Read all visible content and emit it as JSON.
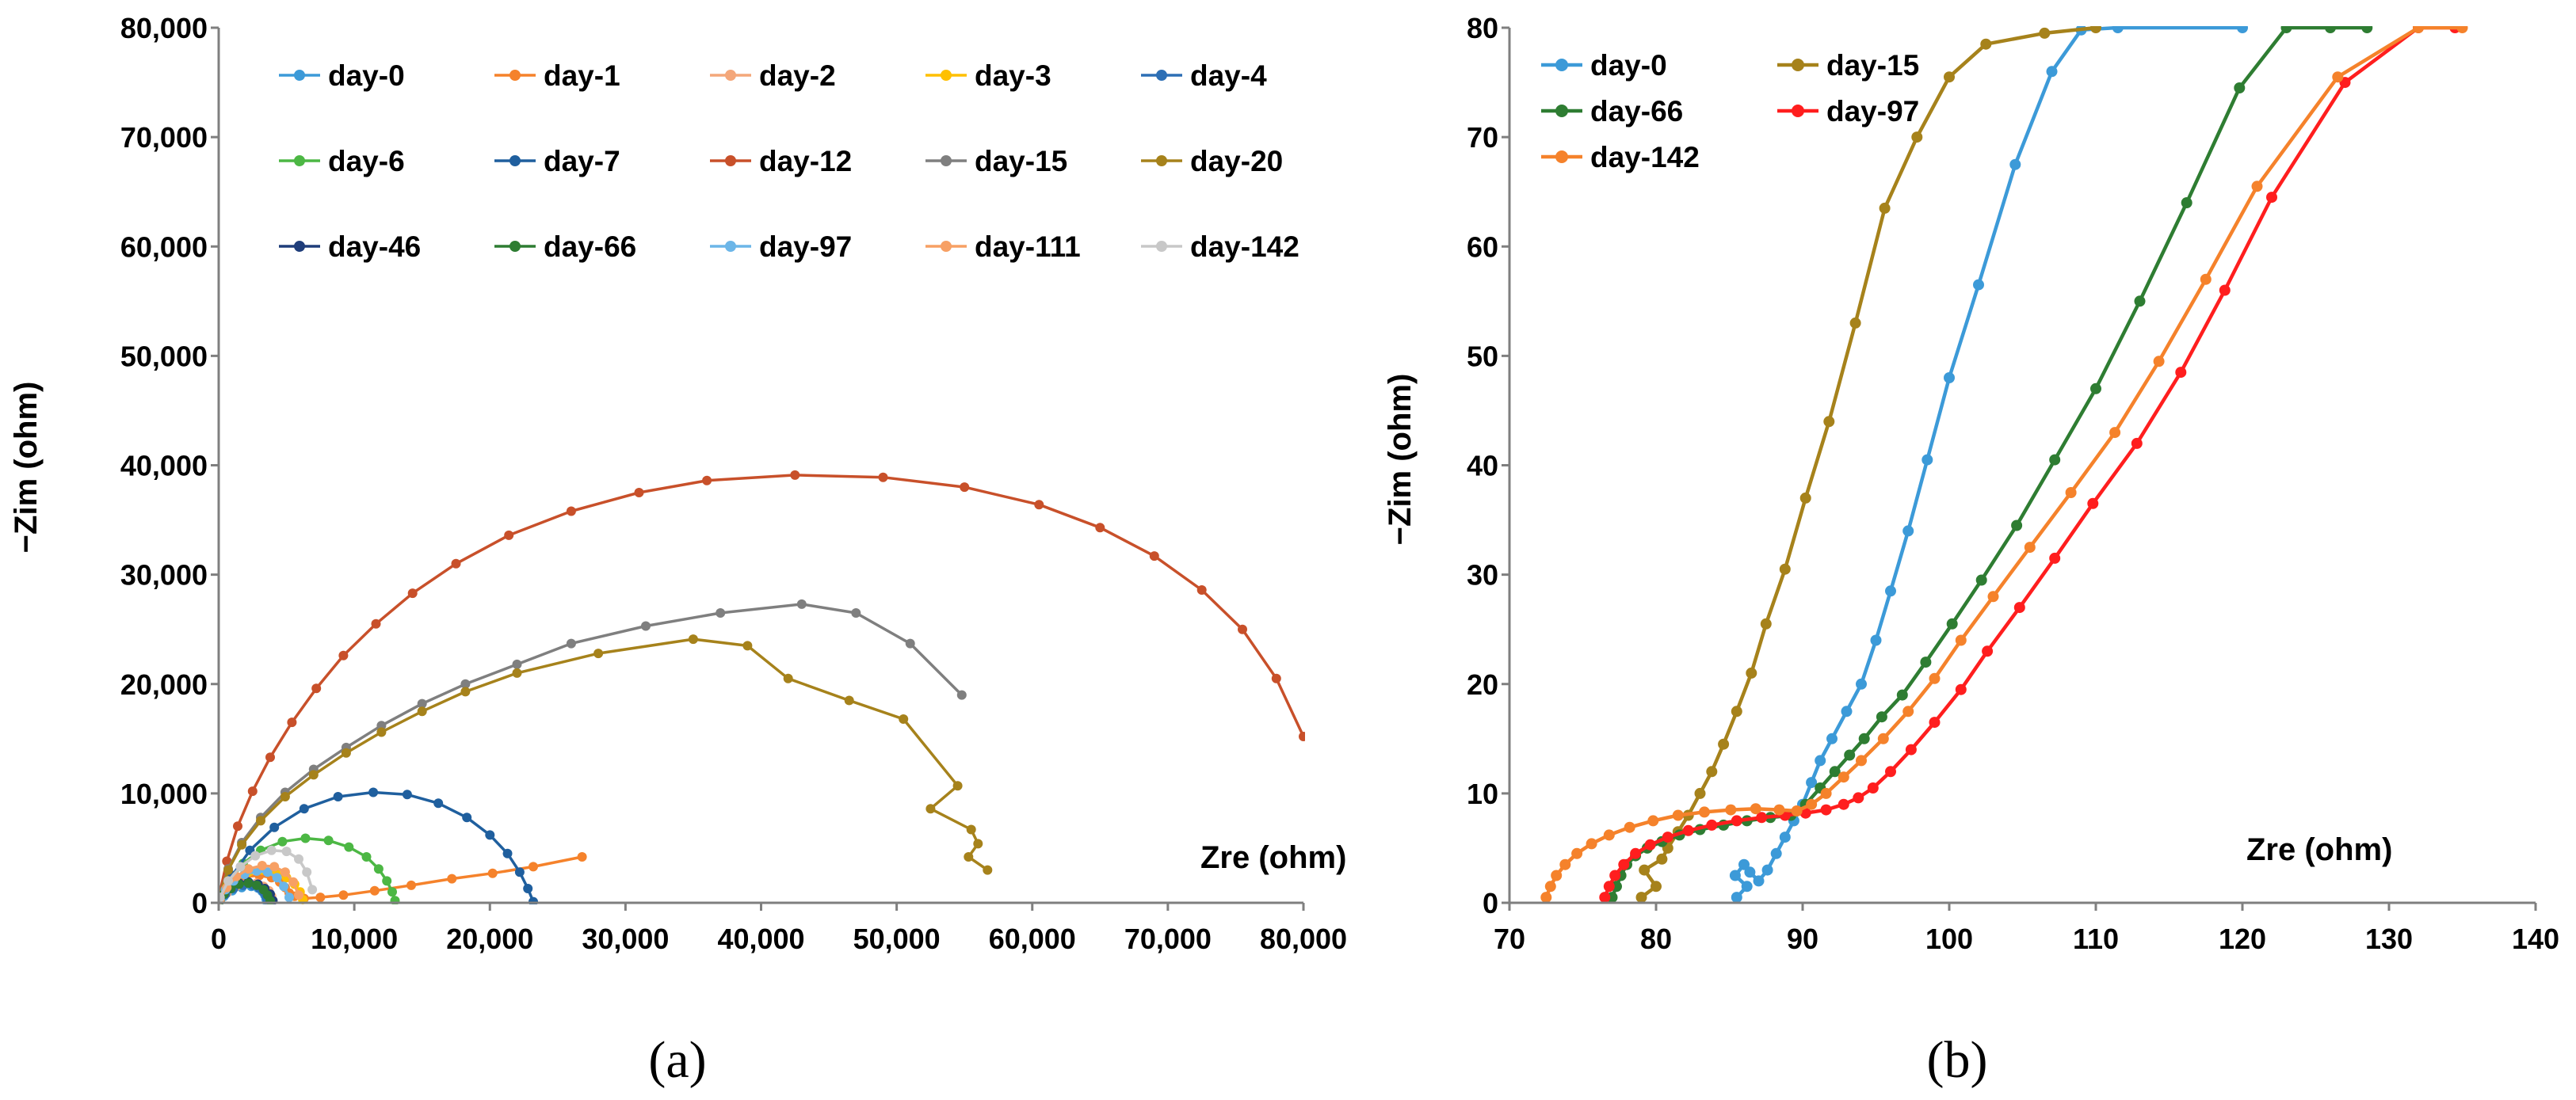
{
  "chart_data": [
    {
      "panel": "a",
      "type": "scatter",
      "caption": "(a)",
      "xlabel": "Zre (ohm)",
      "ylabel": "−Zim (ohm)",
      "xlim": [
        0,
        80000
      ],
      "ylim": [
        0,
        80000
      ],
      "xticks": [
        0,
        10000,
        20000,
        30000,
        40000,
        50000,
        60000,
        70000,
        80000
      ],
      "yticks": [
        0,
        10000,
        20000,
        30000,
        40000,
        50000,
        60000,
        70000,
        80000
      ],
      "xtick_labels": [
        "0",
        "10,000",
        "20,000",
        "30,000",
        "40,000",
        "50,000",
        "60,000",
        "70,000",
        "80,000"
      ],
      "ytick_labels": [
        "0",
        "10,000",
        "20,000",
        "30,000",
        "40,000",
        "50,000",
        "60,000",
        "70,000",
        "80,000"
      ],
      "grid": false,
      "legend": "top, 5 columns",
      "series": [
        {
          "name": "day-0",
          "color": "#3c9ad8",
          "x": [
            50,
            400,
            1000,
            1700,
            2400,
            2900,
            3200,
            3400,
            3500,
            3550
          ],
          "y": [
            100,
            600,
            1100,
            1400,
            1500,
            1350,
            1050,
            700,
            350,
            100
          ]
        },
        {
          "name": "day-1",
          "color": "#f5822b",
          "x": [
            80,
            500,
            1100,
            2000,
            3000,
            3900,
            4500,
            4900,
            5200,
            5600,
            6300,
            7500,
            9200,
            11500,
            14200,
            17200,
            20200,
            23200,
            26800
          ],
          "y": [
            300,
            1100,
            1900,
            2400,
            2500,
            2300,
            1900,
            1400,
            900,
            600,
            400,
            500,
            700,
            1100,
            1600,
            2200,
            2700,
            3300,
            4200
          ]
        },
        {
          "name": "day-2",
          "color": "#f4a77a",
          "x": [
            100,
            600,
            1300,
            2100,
            2800,
            3300,
            3700,
            3900,
            4000
          ],
          "y": [
            200,
            900,
            1500,
            1800,
            1800,
            1500,
            1100,
            600,
            200
          ]
        },
        {
          "name": "day-3",
          "color": "#ffc000",
          "x": [
            100,
            600,
            1300,
            2200,
            3200,
            4200,
            5000,
            5600,
            6000,
            6200
          ],
          "y": [
            200,
            1200,
            2100,
            2800,
            3000,
            2800,
            2300,
            1700,
            1000,
            300
          ]
        },
        {
          "name": "day-4",
          "color": "#2d6fb5",
          "x": [
            100,
            500,
            1100,
            1800,
            2500,
            3000,
            3300,
            3500,
            3600
          ],
          "y": [
            200,
            800,
            1300,
            1600,
            1600,
            1350,
            1000,
            600,
            200
          ]
        },
        {
          "name": "day-6",
          "color": "#4cb744",
          "x": [
            100,
            800,
            1800,
            3100,
            4700,
            6400,
            8100,
            9600,
            10900,
            11800,
            12400,
            12800,
            13000
          ],
          "y": [
            500,
            2000,
            3600,
            4800,
            5600,
            5900,
            5700,
            5100,
            4200,
            3100,
            2000,
            1000,
            200
          ]
        },
        {
          "name": "day-7",
          "color": "#1f5f9e",
          "x": [
            100,
            1000,
            2300,
            4100,
            6300,
            8800,
            11400,
            13900,
            16200,
            18300,
            20000,
            21300,
            22200,
            22800,
            23200
          ],
          "y": [
            500,
            2500,
            4800,
            6900,
            8600,
            9700,
            10100,
            9900,
            9100,
            7800,
            6200,
            4500,
            2800,
            1300,
            100
          ]
        },
        {
          "name": "day-12",
          "color": "#c8502a",
          "x": [
            100,
            600,
            1400,
            2500,
            3800,
            5400,
            7200,
            9200,
            11600,
            14300,
            17500,
            21400,
            26000,
            31000,
            36000,
            42500,
            49000,
            55000,
            60500,
            65000,
            69000,
            72500,
            75500,
            78000,
            80000
          ],
          "y": [
            1000,
            3800,
            7000,
            10200,
            13300,
            16500,
            19600,
            22600,
            25500,
            28300,
            31000,
            33600,
            35800,
            37500,
            38600,
            39100,
            38900,
            38000,
            36400,
            34300,
            31700,
            28600,
            25000,
            20500,
            15200
          ]
        },
        {
          "name": "day-15",
          "color": "#7f7f7f",
          "x": [
            100,
            700,
            1700,
            3100,
            4900,
            7000,
            9400,
            12000,
            15000,
            18200,
            22000,
            26000,
            31500,
            37000,
            43000,
            47000,
            51000,
            54800
          ],
          "y": [
            800,
            3100,
            5500,
            7800,
            10100,
            12200,
            14200,
            16200,
            18200,
            20000,
            21800,
            23700,
            25300,
            26500,
            27300,
            26500,
            23700,
            19000
          ]
        },
        {
          "name": "day-20",
          "color": "#a6821b",
          "x": [
            100,
            700,
            1700,
            3100,
            4900,
            7000,
            9400,
            12000,
            15000,
            18200,
            22000,
            28000,
            35000,
            39000,
            42000,
            46500,
            50500,
            54500,
            52500,
            55500,
            56000,
            55300,
            56700
          ],
          "y": [
            800,
            3000,
            5300,
            7500,
            9700,
            11700,
            13700,
            15600,
            17500,
            19300,
            21000,
            22800,
            24100,
            23500,
            20500,
            18500,
            16800,
            10700,
            8600,
            6700,
            5400,
            4200,
            3000
          ]
        },
        {
          "name": "day-46",
          "color": "#1f3d7a",
          "x": [
            100,
            400,
            900,
            1500,
            2200,
            2900,
            3400,
            3800,
            4000
          ],
          "y": [
            200,
            800,
            1400,
            1800,
            1900,
            1700,
            1300,
            800,
            200
          ]
        },
        {
          "name": "day-66",
          "color": "#2e7d32",
          "x": [
            100,
            400,
            900,
            1500,
            2200,
            2800,
            3300,
            3600,
            3800
          ],
          "y": [
            200,
            800,
            1300,
            1700,
            1800,
            1600,
            1200,
            700,
            200
          ]
        },
        {
          "name": "day-97",
          "color": "#6cb6e8",
          "x": [
            100,
            500,
            1100,
            1900,
            2800,
            3600,
            4300,
            4800,
            5200
          ],
          "y": [
            300,
            1200,
            2000,
            2600,
            2900,
            2800,
            2300,
            1500,
            500
          ]
        },
        {
          "name": "day-111",
          "color": "#f7a064",
          "x": [
            100,
            600,
            1300,
            2200,
            3200,
            4100,
            4900,
            5500,
            5900
          ],
          "y": [
            300,
            1400,
            2400,
            3100,
            3400,
            3300,
            2800,
            1900,
            700
          ]
        },
        {
          "name": "day-142",
          "color": "#c8c8c8",
          "x": [
            100,
            700,
            1600,
            2700,
            3900,
            5000,
            5900,
            6500,
            6900
          ],
          "y": [
            500,
            2000,
            3300,
            4300,
            4800,
            4700,
            4000,
            2800,
            1200
          ]
        }
      ]
    },
    {
      "panel": "b",
      "type": "scatter",
      "caption": "(b)",
      "xlabel": "Zre (ohm)",
      "ylabel": "−Zim (ohm)",
      "xlim": [
        70,
        140
      ],
      "ylim": [
        0,
        80
      ],
      "xticks": [
        70,
        80,
        90,
        100,
        110,
        120,
        130,
        140
      ],
      "yticks": [
        0,
        10,
        20,
        30,
        40,
        50,
        60,
        70,
        80
      ],
      "xtick_labels": [
        "70",
        "80",
        "90",
        "100",
        "110",
        "120",
        "130",
        "140"
      ],
      "ytick_labels": [
        "0",
        "10",
        "20",
        "30",
        "40",
        "50",
        "60",
        "70",
        "80"
      ],
      "grid": false,
      "legend": "top-left, 2 columns",
      "series": [
        {
          "name": "day-0",
          "color": "#3c9ad8",
          "x": [
            85.5,
            86.2,
            85.4,
            86.0,
            86.4,
            87.0,
            87.6,
            88.2,
            88.8,
            89.4,
            90.0,
            90.6,
            91.2,
            92.0,
            93.0,
            94.0,
            95.0,
            96.0,
            97.2,
            98.5,
            100.0,
            102.0,
            104.5,
            107.0,
            109.0,
            111.5,
            120.0
          ],
          "y": [
            0.5,
            1.5,
            2.5,
            3.5,
            2.8,
            2.0,
            3.0,
            4.5,
            6.0,
            7.5,
            9.0,
            11.0,
            13.0,
            15.0,
            17.5,
            20.0,
            24.0,
            28.5,
            34.0,
            40.5,
            48.0,
            56.5,
            67.5,
            76.0,
            79.8,
            80.0,
            80.0
          ]
        },
        {
          "name": "day-15",
          "color": "#a6821b",
          "x": [
            79.0,
            80.0,
            79.2,
            80.4,
            80.8,
            81.5,
            82.2,
            83.0,
            83.8,
            84.6,
            85.5,
            86.5,
            87.5,
            88.8,
            90.2,
            91.8,
            93.6,
            95.6,
            97.8,
            100.0,
            102.5,
            106.5,
            110.0
          ],
          "y": [
            0.5,
            1.5,
            3.0,
            4.0,
            5.0,
            6.5,
            8.0,
            10.0,
            12.0,
            14.5,
            17.5,
            21.0,
            25.5,
            30.5,
            37.0,
            44.0,
            53.0,
            63.5,
            70.0,
            75.5,
            78.5,
            79.5,
            80.0
          ]
        },
        {
          "name": "day-66",
          "color": "#2e7d32",
          "x": [
            77.0,
            77.3,
            77.6,
            78.0,
            78.6,
            79.4,
            80.4,
            81.6,
            83.0,
            84.6,
            86.2,
            87.8,
            89.2,
            90.2,
            91.2,
            92.2,
            93.2,
            94.2,
            95.4,
            96.8,
            98.4,
            100.2,
            102.2,
            104.6,
            107.2,
            110.0,
            113.0,
            116.2,
            119.8,
            123.0,
            126.0,
            128.5
          ],
          "y": [
            0.5,
            1.5,
            2.5,
            3.5,
            4.3,
            5.0,
            5.6,
            6.2,
            6.7,
            7.1,
            7.5,
            7.8,
            8.0,
            9.0,
            10.5,
            12.0,
            13.5,
            15.0,
            17.0,
            19.0,
            22.0,
            25.5,
            29.5,
            34.5,
            40.5,
            47.0,
            55.0,
            64.0,
            74.5,
            80.0,
            80.0,
            80.0
          ]
        },
        {
          "name": "day-97",
          "color": "#ff1e1e",
          "x": [
            76.5,
            76.8,
            77.2,
            77.8,
            78.6,
            79.6,
            80.8,
            82.2,
            83.8,
            85.5,
            87.2,
            88.8,
            90.2,
            91.6,
            92.8,
            93.8,
            94.8,
            96.0,
            97.4,
            99.0,
            100.8,
            102.6,
            104.8,
            107.2,
            109.8,
            112.8,
            115.8,
            118.8,
            122.0,
            127.0,
            132.0,
            134.5
          ],
          "y": [
            0.5,
            1.5,
            2.5,
            3.5,
            4.5,
            5.3,
            6.0,
            6.6,
            7.1,
            7.5,
            7.8,
            8.0,
            8.2,
            8.5,
            9.0,
            9.6,
            10.5,
            12.0,
            14.0,
            16.5,
            19.5,
            23.0,
            27.0,
            31.5,
            36.5,
            42.0,
            48.5,
            56.0,
            64.5,
            75.0,
            80.0,
            80.0
          ]
        },
        {
          "name": "day-142",
          "color": "#f5822b",
          "x": [
            72.5,
            72.8,
            73.2,
            73.8,
            74.6,
            75.6,
            76.8,
            78.2,
            79.8,
            81.5,
            83.3,
            85.1,
            86.8,
            88.4,
            89.6,
            90.6,
            91.6,
            92.8,
            94.0,
            95.5,
            97.2,
            99.0,
            100.8,
            103.0,
            105.5,
            108.3,
            111.3,
            114.3,
            117.5,
            121.0,
            126.5,
            132.0,
            135.0
          ],
          "y": [
            0.5,
            1.5,
            2.5,
            3.5,
            4.5,
            5.4,
            6.2,
            6.9,
            7.5,
            8.0,
            8.3,
            8.5,
            8.6,
            8.5,
            8.4,
            9.0,
            10.0,
            11.5,
            13.0,
            15.0,
            17.5,
            20.5,
            24.0,
            28.0,
            32.5,
            37.5,
            43.0,
            49.5,
            57.0,
            65.5,
            75.5,
            80.0,
            80.0
          ]
        }
      ]
    }
  ]
}
